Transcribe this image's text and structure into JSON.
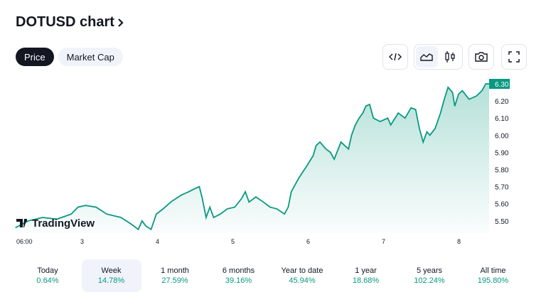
{
  "header": {
    "title": "DOTUSD chart",
    "chevron_icon": "chevron-right-icon"
  },
  "tabs": [
    {
      "label": "Price",
      "active": true
    },
    {
      "label": "Market Cap",
      "active": false
    }
  ],
  "toolbar": {
    "embed_icon": "code-icon",
    "area_icon": "area-chart-icon",
    "candles_icon": "candlestick-icon",
    "snapshot_icon": "camera-icon",
    "fullscreen_icon": "fullscreen-icon"
  },
  "logo": {
    "text": "TradingView"
  },
  "colors": {
    "line": "#089981",
    "accent": "#089981",
    "text": "#131722"
  },
  "chart_data": {
    "type": "area",
    "x_tick_labels": [
      "06:00",
      "3",
      "4",
      "5",
      "6",
      "7",
      "8"
    ],
    "x_ticks": [
      2.25,
      3,
      4,
      5,
      6,
      7,
      8
    ],
    "y_tick_labels": [
      "6.20",
      "6.10",
      "6.00",
      "5.90",
      "5.80",
      "5.70",
      "5.60",
      "5.50"
    ],
    "y_ticks": [
      6.2,
      6.1,
      6.0,
      5.9,
      5.8,
      5.7,
      5.6,
      5.5
    ],
    "ylim": [
      5.45,
      6.32
    ],
    "last_price_label": "6.30",
    "x": [
      2.12,
      2.29,
      2.48,
      2.67,
      2.86,
      2.95,
      3.05,
      3.19,
      3.33,
      3.52,
      3.66,
      3.75,
      3.8,
      3.85,
      3.92,
      3.99,
      4.08,
      4.18,
      4.32,
      4.42,
      4.51,
      4.56,
      4.6,
      4.65,
      4.7,
      4.75,
      4.84,
      4.93,
      5.03,
      5.12,
      5.17,
      5.22,
      5.31,
      5.41,
      5.5,
      5.59,
      5.69,
      5.74,
      5.78,
      5.88,
      5.97,
      6.07,
      6.11,
      6.16,
      6.24,
      6.3,
      6.35,
      6.44,
      6.54,
      6.58,
      6.63,
      6.68,
      6.73,
      6.77,
      6.82,
      6.87,
      6.96,
      7.06,
      7.1,
      7.2,
      7.29,
      7.37,
      7.43,
      7.48,
      7.53,
      7.58,
      7.62,
      7.69,
      7.76,
      7.81,
      7.86,
      7.92,
      7.95,
      8.0,
      8.05,
      8.14,
      8.24,
      8.31,
      8.36
    ],
    "y": [
      5.46,
      5.5,
      5.52,
      5.51,
      5.54,
      5.58,
      5.59,
      5.58,
      5.54,
      5.52,
      5.48,
      5.45,
      5.5,
      5.47,
      5.45,
      5.54,
      5.57,
      5.61,
      5.65,
      5.67,
      5.69,
      5.7,
      5.63,
      5.52,
      5.58,
      5.52,
      5.54,
      5.57,
      5.58,
      5.63,
      5.67,
      5.61,
      5.64,
      5.61,
      5.58,
      5.57,
      5.54,
      5.58,
      5.67,
      5.75,
      5.81,
      5.88,
      5.94,
      5.96,
      5.92,
      5.9,
      5.86,
      5.96,
      5.92,
      6.0,
      6.06,
      6.1,
      6.13,
      6.17,
      6.18,
      6.1,
      6.08,
      6.1,
      6.06,
      6.13,
      6.1,
      6.16,
      6.15,
      6.04,
      5.96,
      6.02,
      6.0,
      6.04,
      6.13,
      6.21,
      6.28,
      6.25,
      6.17,
      6.24,
      6.26,
      6.21,
      6.23,
      6.26,
      6.3
    ],
    "grid": false
  },
  "periods": [
    {
      "label": "Today",
      "value": "0.64%",
      "active": false
    },
    {
      "label": "Week",
      "value": "14.78%",
      "active": true
    },
    {
      "label": "1 month",
      "value": "27.59%",
      "active": false
    },
    {
      "label": "6 months",
      "value": "39.16%",
      "active": false
    },
    {
      "label": "Year to date",
      "value": "45.94%",
      "active": false
    },
    {
      "label": "1 year",
      "value": "18.68%",
      "active": false
    },
    {
      "label": "5 years",
      "value": "102.24%",
      "active": false
    },
    {
      "label": "All time",
      "value": "195.80%",
      "active": false
    }
  ]
}
